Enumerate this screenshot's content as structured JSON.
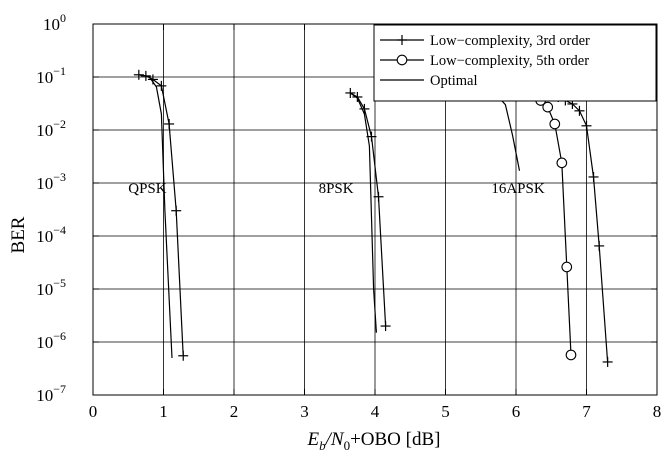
{
  "chart_data": {
    "type": "line",
    "title": "",
    "xlabel": {
      "base": "E",
      "sub1": "b",
      "mid": "/N",
      "sub2": "0",
      "rest": "+OBO [dB]"
    },
    "ylabel": "BER",
    "xlim": [
      0,
      8
    ],
    "ylim": [
      1e-07,
      1
    ],
    "yscale": "log",
    "grid": true,
    "legend_position": "top-right",
    "x_ticks": [
      0,
      1,
      2,
      3,
      4,
      5,
      6,
      7,
      8
    ],
    "y_ticks": [
      {
        "exp": 0,
        "base": "10",
        "power": "0"
      },
      {
        "exp": -1,
        "base": "10",
        "power": "−1"
      },
      {
        "exp": -2,
        "base": "10",
        "power": "−2"
      },
      {
        "exp": -3,
        "base": "10",
        "power": "−3"
      },
      {
        "exp": -4,
        "base": "10",
        "power": "−4"
      },
      {
        "exp": -5,
        "base": "10",
        "power": "−5"
      },
      {
        "exp": -6,
        "base": "10",
        "power": "−6"
      },
      {
        "exp": -7,
        "base": "10",
        "power": "−7"
      }
    ],
    "annotations": [
      {
        "text": "QPSK",
        "x": 0.5,
        "y": 0.0008
      },
      {
        "text": "8PSK",
        "x": 3.2,
        "y": 0.0008
      },
      {
        "text": "16APSK",
        "x": 5.65,
        "y": 0.0008
      }
    ],
    "series": [
      {
        "name": "Low−complexity, 3rd order",
        "marker": "plus",
        "group": "QPSK",
        "points": [
          [
            0.65,
            0.11
          ],
          [
            0.75,
            0.105
          ],
          [
            0.85,
            0.09
          ],
          [
            0.97,
            0.068
          ],
          [
            1.08,
            0.013
          ],
          [
            1.18,
            0.0003
          ],
          [
            1.28,
            5.5e-07
          ]
        ]
      },
      {
        "name": "Low−complexity, 3rd order",
        "marker": "plus",
        "group": "8PSK",
        "points": [
          [
            3.65,
            0.05
          ],
          [
            3.75,
            0.042
          ],
          [
            3.85,
            0.025
          ],
          [
            3.95,
            0.0075
          ],
          [
            4.05,
            0.00055
          ],
          [
            4.15,
            2e-06
          ]
        ]
      },
      {
        "name": "Low−complexity, 3rd order",
        "marker": "plus",
        "group": "16APSK",
        "points": [
          [
            6.5,
            0.048
          ],
          [
            6.6,
            0.042
          ],
          [
            6.7,
            0.036
          ],
          [
            6.8,
            0.031
          ],
          [
            6.9,
            0.023
          ],
          [
            7.0,
            0.012
          ],
          [
            7.1,
            0.0013
          ],
          [
            7.18,
            6.5e-05
          ],
          [
            7.3,
            4.2e-07
          ]
        ]
      },
      {
        "name": "Low−complexity, 5th order",
        "marker": "circle",
        "group": "16APSK",
        "points": [
          [
            6.15,
            0.05
          ],
          [
            6.25,
            0.045
          ],
          [
            6.35,
            0.036
          ],
          [
            6.45,
            0.027
          ],
          [
            6.55,
            0.013
          ],
          [
            6.65,
            0.0024
          ],
          [
            6.72,
            2.6e-05
          ],
          [
            6.78,
            5.7e-07
          ]
        ]
      },
      {
        "name": "Optimal",
        "marker": "none",
        "group": "QPSK",
        "points": [
          [
            0.65,
            0.11
          ],
          [
            0.8,
            0.1
          ],
          [
            0.9,
            0.065
          ],
          [
            0.97,
            0.02
          ],
          [
            1.02,
            0.0003
          ],
          [
            1.12,
            5e-07
          ]
        ]
      },
      {
        "name": "Optimal",
        "marker": "none",
        "group": "8PSK",
        "points": [
          [
            3.65,
            0.05
          ],
          [
            3.75,
            0.04
          ],
          [
            3.85,
            0.02
          ],
          [
            3.92,
            0.005
          ],
          [
            3.98,
            1e-05
          ],
          [
            4.02,
            1.5e-06
          ]
        ]
      },
      {
        "name": "Optimal",
        "marker": "none",
        "group": "16APSK",
        "points": [
          [
            5.5,
            0.058
          ],
          [
            5.7,
            0.05
          ],
          [
            5.85,
            0.03
          ],
          [
            5.95,
            0.008
          ],
          [
            6.05,
            0.0017
          ]
        ]
      }
    ],
    "legend": [
      {
        "label": "Low−complexity, 3rd order",
        "marker": "plus"
      },
      {
        "label": "Low−complexity, 5th order",
        "marker": "circle"
      },
      {
        "label": "Optimal",
        "marker": "none"
      }
    ]
  }
}
